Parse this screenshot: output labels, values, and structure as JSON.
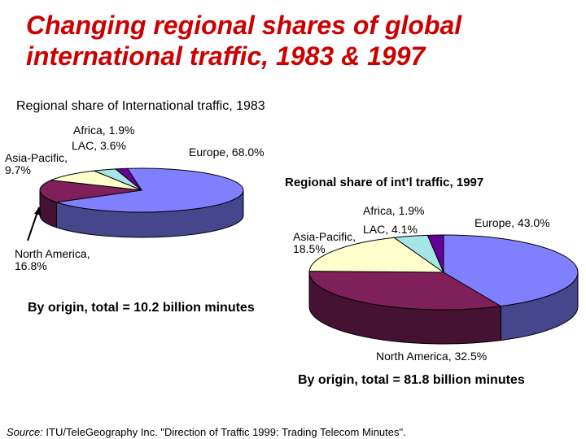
{
  "colors": {
    "title": "#cc0000",
    "text": "#000000",
    "europe": "#8080ff",
    "north_america": "#80205a",
    "asia_pacific": "#ffffcc",
    "lac": "#a6e6e6",
    "africa": "#660099"
  },
  "page": {
    "title_line1": "Changing regional shares of global",
    "title_line2": "international traffic, 1983 & 1997",
    "source_label": "Source:",
    "source_text": " ITU/TeleGeography Inc. \"Direction of Traffic 1999: Trading Telecom Minutes\"."
  },
  "chart_data": [
    {
      "type": "pie",
      "title": "Regional share of International traffic, 1983",
      "subtitle": "By origin, total = 10.2 billion minutes",
      "slices": [
        {
          "label": "Europe",
          "value": 68.0,
          "display": "Europe, 68.0%",
          "color": "#8080ff"
        },
        {
          "label": "North America",
          "value": 16.8,
          "display_lines": [
            "North America,",
            "16.8%"
          ],
          "color": "#80205a"
        },
        {
          "label": "Asia-Pacific",
          "value": 9.7,
          "display_lines": [
            "Asia-Pacific,",
            "9.7%"
          ],
          "color": "#ffffcc"
        },
        {
          "label": "LAC",
          "value": 3.6,
          "display": "LAC, 3.6%",
          "color": "#a6e6e6"
        },
        {
          "label": "Africa",
          "value": 1.9,
          "display": "Africa, 1.9%",
          "color": "#660099"
        }
      ]
    },
    {
      "type": "pie",
      "title": "Regional share of int’l traffic, 1997",
      "subtitle": "By origin, total = 81.8 billion minutes",
      "slices": [
        {
          "label": "Europe",
          "value": 43.0,
          "display": "Europe, 43.0%",
          "color": "#8080ff"
        },
        {
          "label": "North America",
          "value": 32.5,
          "display": "North America, 32.5%",
          "color": "#80205a"
        },
        {
          "label": "Asia-Pacific",
          "value": 18.5,
          "display_lines": [
            "Asia-Pacific,",
            "18.5%"
          ],
          "color": "#ffffcc"
        },
        {
          "label": "LAC",
          "value": 4.1,
          "display": "LAC, 4.1%",
          "color": "#a6e6e6"
        },
        {
          "label": "Africa",
          "value": 1.9,
          "display": "Africa, 1.9%",
          "color": "#660099"
        }
      ]
    }
  ]
}
